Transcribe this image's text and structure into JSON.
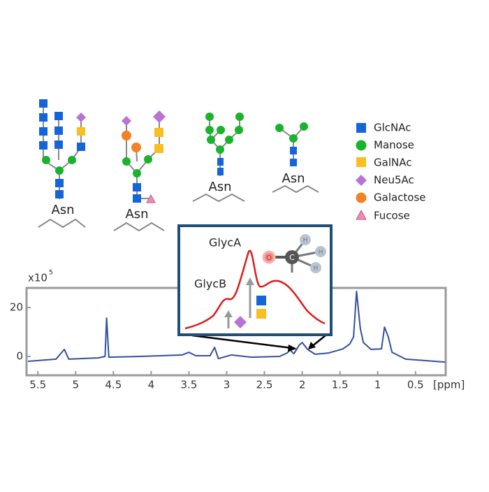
{
  "glycans": {
    "labels": [
      "Asn",
      "Asn",
      "Asn",
      "Asn"
    ]
  },
  "legend": {
    "items": [
      "GlcNAc",
      "Manose",
      "GalNAc",
      "Neu5Ac",
      "Galactose",
      "Fucose"
    ]
  },
  "inset": {
    "peak_labels": [
      "GlycA",
      "GlycB"
    ],
    "atoms": [
      "O",
      "C",
      "H",
      "H",
      "H"
    ]
  },
  "chart_data": {
    "type": "line",
    "y_axis_label": "x10",
    "y_axis_exponent": "5",
    "x_axis_label": "[ppm]",
    "x": [
      5.63,
      5.26,
      5.19,
      5.15,
      5.09,
      4.7,
      4.61,
      4.59,
      4.56,
      4.15,
      3.87,
      3.59,
      3.5,
      3.41,
      3.22,
      3.16,
      3.11,
      2.94,
      2.67,
      2.3,
      2.2,
      2.16,
      2.11,
      2.04,
      2.0,
      1.93,
      1.83,
      1.65,
      1.46,
      1.37,
      1.32,
      1.28,
      1.23,
      1.19,
      1.09,
      0.95,
      0.91,
      0.86,
      0.81,
      0.63,
      0.11
    ],
    "series": [
      {
        "color": "#34509c",
        "values": [
          -2.0,
          -1.1,
          1.4,
          2.9,
          -1.1,
          -0.6,
          0,
          15.7,
          -0.3,
          0,
          0.3,
          0.6,
          1.7,
          0.3,
          0.3,
          3.7,
          -0.9,
          0.6,
          -0.3,
          0,
          1.4,
          2.6,
          1.1,
          4.6,
          5.7,
          2.9,
          0.9,
          1.4,
          3.1,
          5.1,
          8.0,
          26.6,
          11.4,
          5.7,
          2.9,
          3.1,
          12.0,
          8.0,
          1.7,
          -1.1,
          -2.3
        ]
      }
    ],
    "xlim": [
      5.65,
      0.1
    ],
    "ylim": [
      -7.7,
      28
    ],
    "xticks": [
      5.5,
      5,
      4.5,
      4,
      3.5,
      3,
      2.5,
      2,
      1.5,
      1,
      0.5
    ],
    "yticks": [
      0,
      20
    ]
  }
}
